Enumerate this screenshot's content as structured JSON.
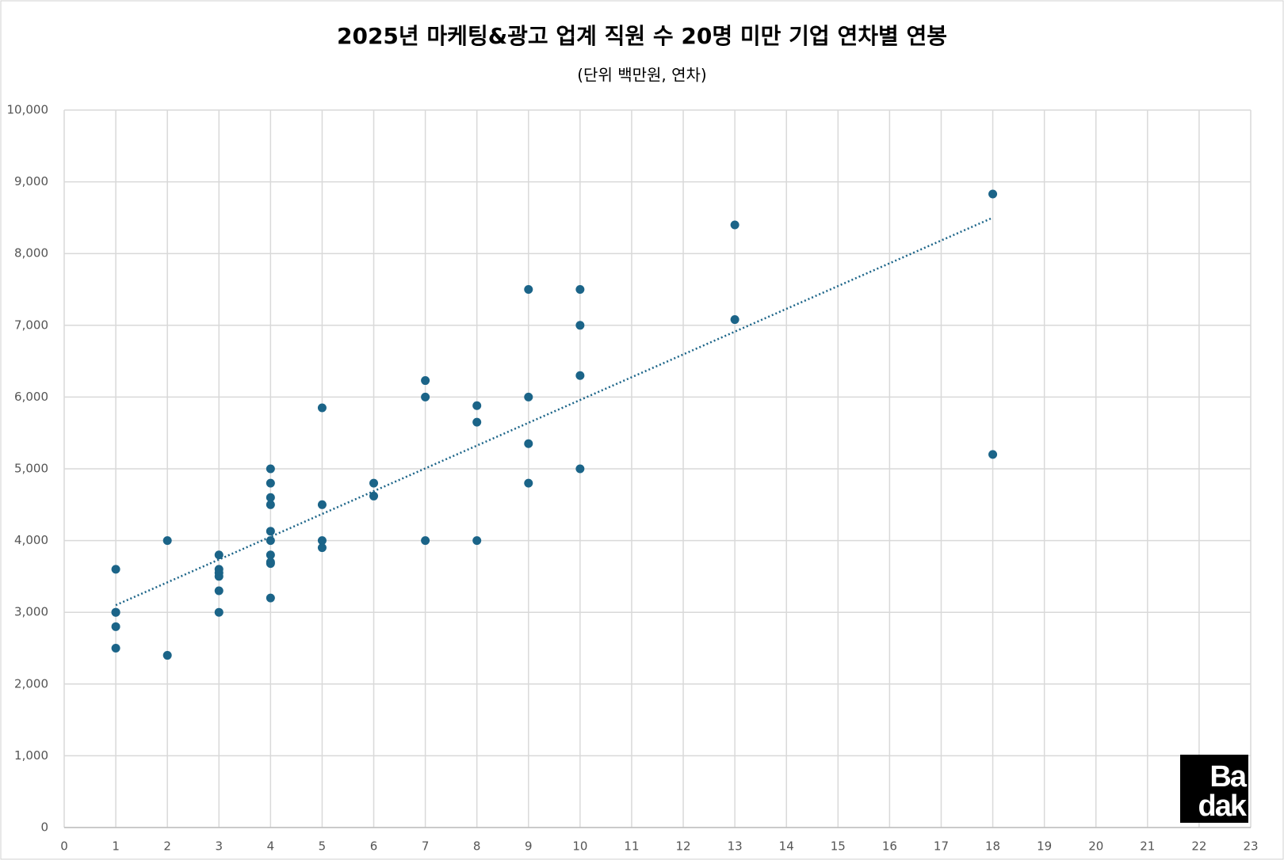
{
  "chart_data": {
    "type": "scatter",
    "title": "2025년 마케팅&광고 업계 직원 수 20명 미만 기업 연차별 연봉",
    "subtitle": "(단위 백만원, 연차)",
    "series": [
      {
        "color": "#1b6488",
        "x": [
          1,
          1,
          1,
          1,
          1,
          2,
          2,
          3,
          3,
          3,
          3,
          3,
          3,
          4,
          4,
          4,
          4,
          4,
          4,
          4,
          4,
          4,
          4,
          5,
          5,
          5,
          5,
          6,
          6,
          7,
          7,
          7,
          8,
          8,
          8,
          9,
          9,
          9,
          9,
          10,
          10,
          10,
          10,
          13,
          13,
          18,
          18
        ],
        "values": [
          3600,
          3000,
          3000,
          2800,
          2500,
          4000,
          2400,
          3800,
          3600,
          3550,
          3500,
          3300,
          3000,
          5000,
          4800,
          4600,
          4500,
          4130,
          4000,
          3800,
          3700,
          3680,
          3200,
          5850,
          4500,
          4000,
          3900,
          4800,
          4620,
          6230,
          6000,
          4000,
          5880,
          5650,
          4000,
          7500,
          6000,
          5350,
          4800,
          7500,
          7000,
          6300,
          5000,
          8400,
          7080,
          8830,
          5200
        ]
      }
    ],
    "trendline": {
      "x": [
        1,
        18
      ],
      "values": [
        3100,
        8500
      ]
    },
    "xlim": [
      0,
      23
    ],
    "xticks": [
      0,
      1,
      2,
      3,
      4,
      5,
      6,
      7,
      8,
      9,
      10,
      11,
      12,
      13,
      14,
      15,
      16,
      17,
      18,
      19,
      20,
      21,
      22,
      23
    ],
    "ylim": [
      0,
      10000
    ],
    "yticks": [
      0,
      {
        "value": 1000,
        "label": "1,000"
      },
      {
        "value": 2000,
        "label": "2,000"
      },
      {
        "value": 3000,
        "label": "3,000"
      },
      {
        "value": 4000,
        "label": "4,000"
      },
      {
        "value": 5000,
        "label": "5,000"
      },
      {
        "value": 6000,
        "label": "6,000"
      },
      {
        "value": 7000,
        "label": "7,000"
      },
      {
        "value": 8000,
        "label": "8,000"
      },
      {
        "value": 9000,
        "label": "9,000"
      },
      {
        "value": 10000,
        "label": "10,000"
      }
    ],
    "grid": true,
    "watermark": [
      "Ba",
      "dak"
    ]
  }
}
